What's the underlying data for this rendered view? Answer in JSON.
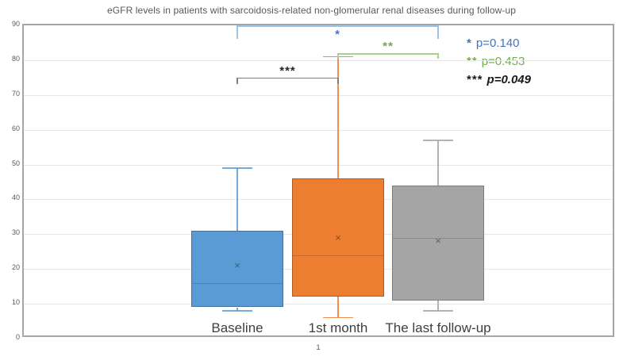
{
  "chart_data": {
    "type": "boxplot",
    "title": "eGFR levels in patients with sarcoidosis-related non-glomerular renal diseases during follow-up",
    "xlabel": "",
    "ylabel": "",
    "ylim": [
      0,
      90
    ],
    "ytick_interval": 10,
    "grid": true,
    "x_axis_label": "1",
    "categories": [
      "Baseline",
      "1st month",
      "The last follow-up"
    ],
    "series": [
      {
        "name": "Baseline",
        "color": "#5b9bd5",
        "border_color": "#41719c",
        "whisker_low": 8,
        "q1": 9,
        "median": 16,
        "mean": 21,
        "q3": 31,
        "whisker_high": 49
      },
      {
        "name": "1st month",
        "color": "#ed7d31",
        "border_color": "#ae5a21",
        "whisker_low": 6,
        "q1": 12,
        "median": 24,
        "mean": 29,
        "q3": 46,
        "whisker_high": 81
      },
      {
        "name": "The last follow-up",
        "color": "#a5a5a5",
        "border_color": "#7b7b7b",
        "whisker_low": 8,
        "q1": 11,
        "median": 29,
        "mean": 28,
        "q3": 44,
        "whisker_high": 57
      }
    ],
    "significance_brackets": [
      {
        "stars": "*",
        "p_value": "p=0.140",
        "from": "Baseline",
        "to": "The last follow-up",
        "y_value": 90,
        "color": "#9dc3e6",
        "star_color": "#4472c4"
      },
      {
        "stars": "**",
        "p_value": "p=0.453",
        "from": "1st month",
        "to": "The last follow-up",
        "y_value": 82,
        "color": "#a9d18e",
        "star_color": "#70ad47"
      },
      {
        "stars": "***",
        "p_value": "p=0.049",
        "from": "Baseline",
        "to": "1st month",
        "y_value": 75,
        "color": "#7f7f7f",
        "star_color": "#262626"
      }
    ],
    "legend_position": "top-right"
  },
  "legend": [
    {
      "stars": "*",
      "label": "p=0.140",
      "color": "#4472c4",
      "emphasis": false
    },
    {
      "stars": "**",
      "label": "p=0.453",
      "color": "#70ad47",
      "emphasis": false
    },
    {
      "stars": "***",
      "label": "p=0.049",
      "color": "#1a1a1a",
      "emphasis": true
    }
  ]
}
